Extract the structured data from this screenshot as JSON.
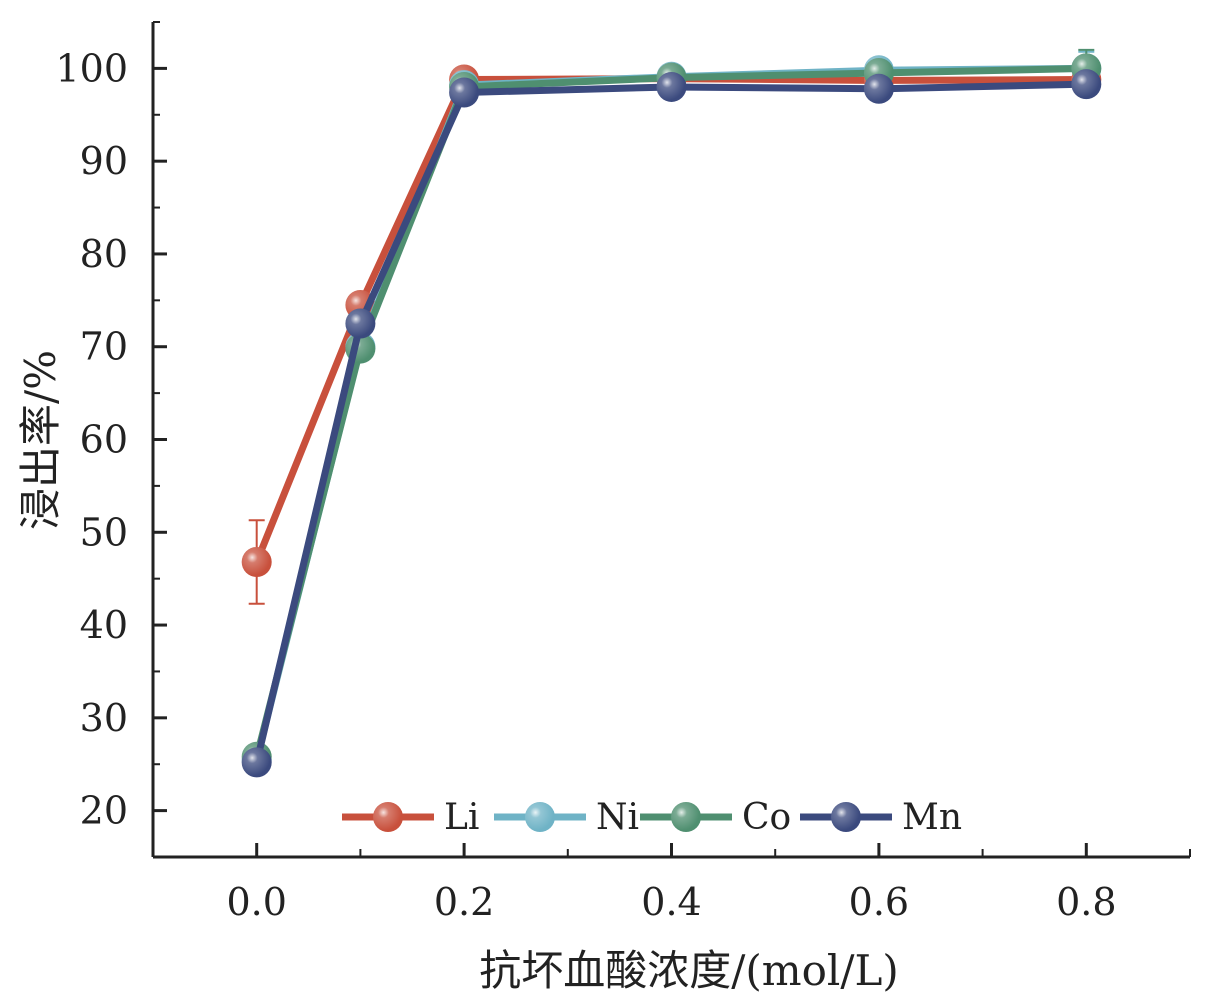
{
  "chart_data": {
    "type": "line",
    "xlabel": "抗坏血酸浓度/(mol/L)",
    "ylabel": "浸出率/%",
    "x": [
      0.0,
      0.1,
      0.2,
      0.4,
      0.6,
      0.8
    ],
    "x_tick_labels": [
      "0.0",
      "0.2",
      "0.4",
      "0.6",
      "0.8"
    ],
    "x_ticks": [
      0.0,
      0.2,
      0.4,
      0.6,
      0.8
    ],
    "y_ticks": [
      20,
      30,
      40,
      50,
      60,
      70,
      80,
      90,
      100
    ],
    "y_tick_labels": [
      "20",
      "30",
      "40",
      "50",
      "60",
      "70",
      "80",
      "90",
      "100"
    ],
    "xlim": [
      -0.1,
      0.9
    ],
    "ylim": [
      15,
      105
    ],
    "grid": false,
    "legend_position": "bottom",
    "series": [
      {
        "name": "Li",
        "color": "#c8503c",
        "values": [
          46.8,
          74.5,
          98.8,
          98.9,
          98.7,
          98.8
        ],
        "errors": [
          4.5,
          0.6,
          0.5,
          0.4,
          0.6,
          0.6
        ]
      },
      {
        "name": "Ni",
        "color": "#6fb3c6",
        "values": [
          25.5,
          70.0,
          98.2,
          99.1,
          99.8,
          100.0
        ],
        "errors": [
          1.0,
          0.8,
          0.5,
          0.4,
          0.5,
          1.8
        ]
      },
      {
        "name": "Co",
        "color": "#4f8f70",
        "values": [
          25.8,
          69.8,
          98.0,
          99.0,
          99.5,
          100.0
        ],
        "errors": [
          1.2,
          0.8,
          0.5,
          0.4,
          0.5,
          2.0
        ]
      },
      {
        "name": "Mn",
        "color": "#3b4a7e",
        "values": [
          25.2,
          72.5,
          97.4,
          98.0,
          97.8,
          98.3
        ],
        "errors": [
          1.2,
          0.6,
          0.5,
          0.4,
          0.5,
          0.5
        ]
      }
    ]
  }
}
